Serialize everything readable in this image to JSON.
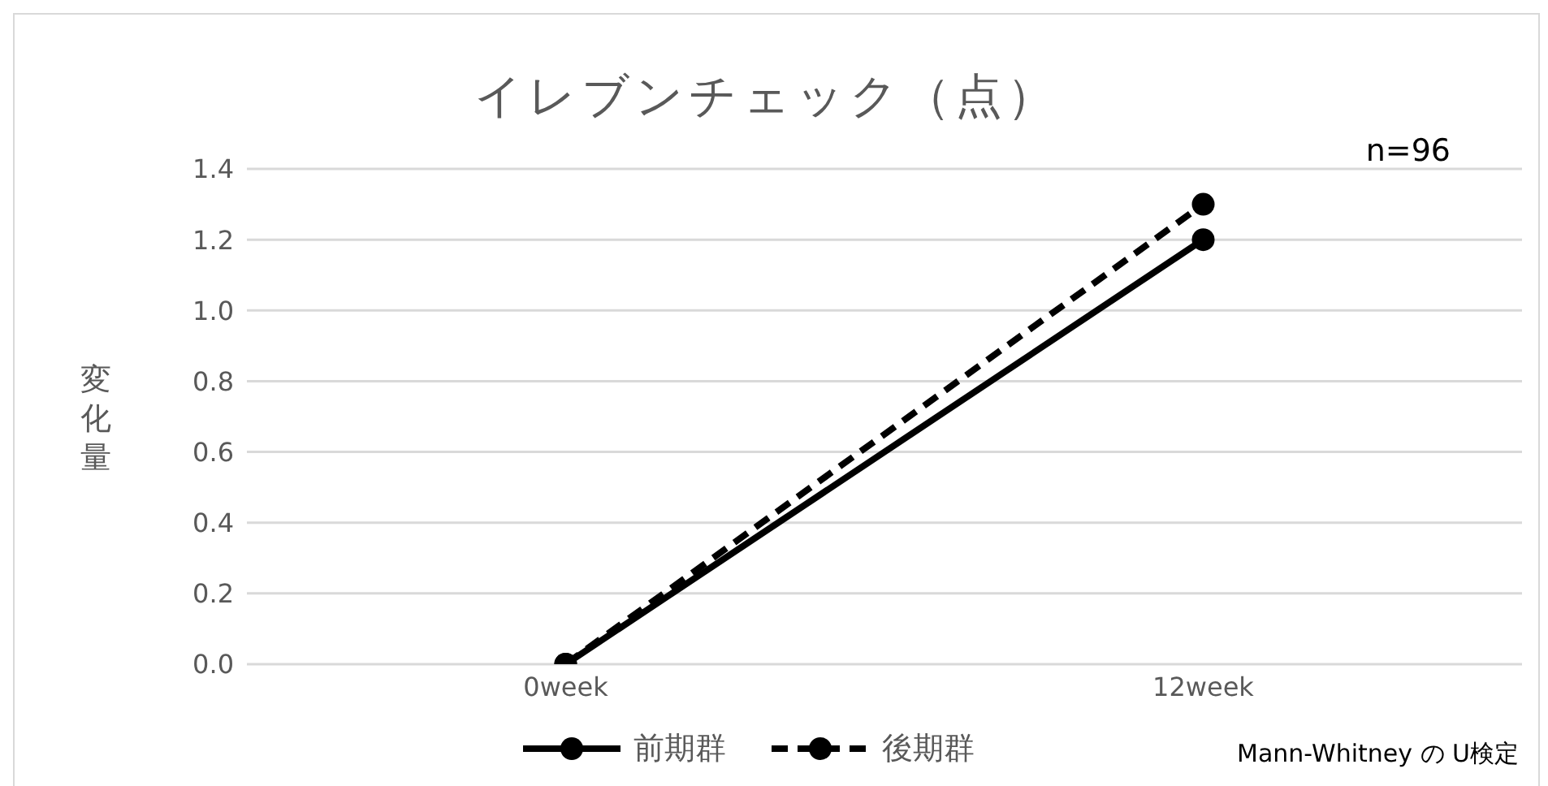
{
  "chart_data": {
    "type": "line",
    "title": "イレブンチェック（点）",
    "ylabel": "変化量",
    "categories": [
      "0week",
      "12week"
    ],
    "series": [
      {
        "name": "前期群",
        "color": "#000000",
        "values": [
          0,
          1.2
        ],
        "line_style": "solid"
      },
      {
        "name": "後期群",
        "color": "#000000",
        "values": [
          0,
          1.3
        ],
        "line_style": "dashed"
      }
    ],
    "ylim": [
      0,
      1.4
    ],
    "yticks": [
      {
        "value": 0,
        "label": "0.0"
      },
      {
        "value": 0.2,
        "label": "0.2"
      },
      {
        "value": 0.4,
        "label": "0.4"
      },
      {
        "value": 0.6,
        "label": "0.6"
      },
      {
        "value": 0.8,
        "label": "0.8"
      },
      {
        "value": 1,
        "label": "1.0"
      },
      {
        "value": 1.2,
        "label": "1.2"
      },
      {
        "value": 1.4,
        "label": "1.4"
      }
    ],
    "grid": "y",
    "legend": "bottom",
    "marker": "circle",
    "annotations": [
      "n=96",
      "Mann-Whitney の U検定"
    ]
  }
}
